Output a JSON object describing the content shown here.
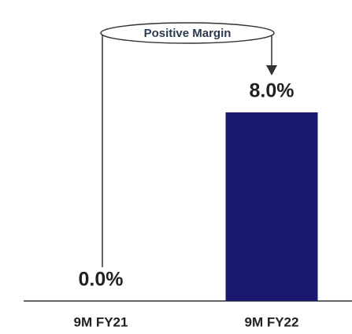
{
  "chart_data": {
    "type": "bar",
    "annotation": "Positive Margin",
    "categories": [
      "9M FY21",
      "9M FY22"
    ],
    "values": [
      0,
      8
    ],
    "value_labels": [
      "0.0%",
      "8.0%"
    ],
    "color": "#191970"
  }
}
